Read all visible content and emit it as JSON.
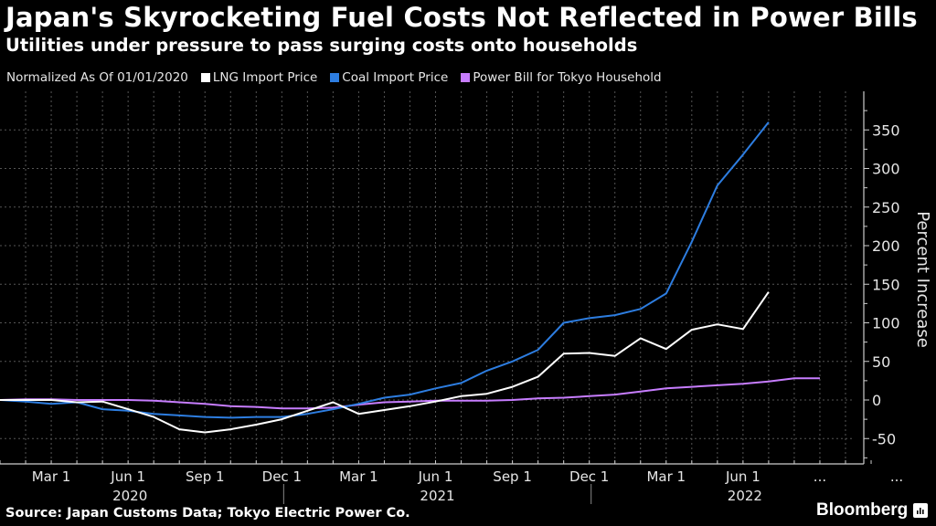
{
  "header": {
    "title": "Japan's Skyrocketing Fuel Costs Not Reflected in Power Bills",
    "subtitle": "Utilities under pressure to pass surging costs onto households"
  },
  "legend": {
    "note": "Normalized As Of 01/01/2020",
    "items": [
      {
        "label": "LNG Import Price",
        "color": "#ffffff"
      },
      {
        "label": "Coal Import Price",
        "color": "#2d7de0"
      },
      {
        "label": "Power Bill for Tokyo Household",
        "color": "#c77dff"
      }
    ]
  },
  "footer": {
    "source": "Source: Japan Customs Data; Tokyo Electric Power Co.",
    "brand": "Bloomberg"
  },
  "chart_data": {
    "type": "line",
    "title": "Japan's Skyrocketing Fuel Costs Not Reflected in Power Bills",
    "xlabel": "",
    "ylabel": "Percent Increase",
    "ylim": [
      -70,
      380
    ],
    "yticks": [
      -50,
      0,
      50,
      100,
      150,
      200,
      250,
      300,
      350
    ],
    "x_start": "2020-01",
    "x_months_total": 36,
    "x_tick_labels": [
      {
        "month_index": 2,
        "label": "Mar 1"
      },
      {
        "month_index": 5,
        "label": "Jun 1"
      },
      {
        "month_index": 8,
        "label": "Sep 1"
      },
      {
        "month_index": 11,
        "label": "Dec 1"
      },
      {
        "month_index": 14,
        "label": "Mar 1"
      },
      {
        "month_index": 17,
        "label": "Jun 1"
      },
      {
        "month_index": 20,
        "label": "Sep 1"
      },
      {
        "month_index": 23,
        "label": "Dec 1"
      },
      {
        "month_index": 26,
        "label": "Mar 1"
      },
      {
        "month_index": 29,
        "label": "Jun 1"
      },
      {
        "month_index": 32,
        "label": "..."
      },
      {
        "month_index": 35,
        "label": "..."
      }
    ],
    "year_labels": [
      {
        "month_index": 5.5,
        "label": "2020"
      },
      {
        "month_index": 17.5,
        "label": "2021"
      },
      {
        "month_index": 29.5,
        "label": "2022"
      }
    ],
    "year_dividers": [
      11.5,
      23.5
    ],
    "grid": true,
    "legend_position": "top-left",
    "series": [
      {
        "name": "LNG Import Price",
        "color": "#ffffff",
        "values": [
          0,
          0,
          0,
          -3,
          -2,
          -12,
          -22,
          -38,
          -42,
          -38,
          -32,
          -25,
          -14,
          -3,
          -18,
          -13,
          -8,
          -2,
          5,
          8,
          17,
          30,
          60,
          61,
          57,
          80,
          66,
          91,
          98,
          92,
          140
        ]
      },
      {
        "name": "Coal Import Price",
        "color": "#2d7de0",
        "values": [
          0,
          -2,
          -5,
          -3,
          -12,
          -14,
          -18,
          -20,
          -22,
          -23,
          -22,
          -22,
          -18,
          -12,
          -5,
          3,
          7,
          15,
          22,
          38,
          50,
          65,
          100,
          106,
          110,
          118,
          138,
          205,
          278,
          318,
          360
        ]
      },
      {
        "name": "Power Bill for Tokyo Household",
        "color": "#c77dff",
        "values": [
          0,
          1,
          1,
          0,
          0,
          0,
          -1,
          -3,
          -5,
          -8,
          -9,
          -11,
          -11,
          -10,
          -6,
          -3,
          -2,
          -1,
          -1,
          -1,
          0,
          2,
          3,
          5,
          7,
          11,
          15,
          17,
          19,
          21,
          24,
          28,
          28
        ]
      }
    ]
  }
}
